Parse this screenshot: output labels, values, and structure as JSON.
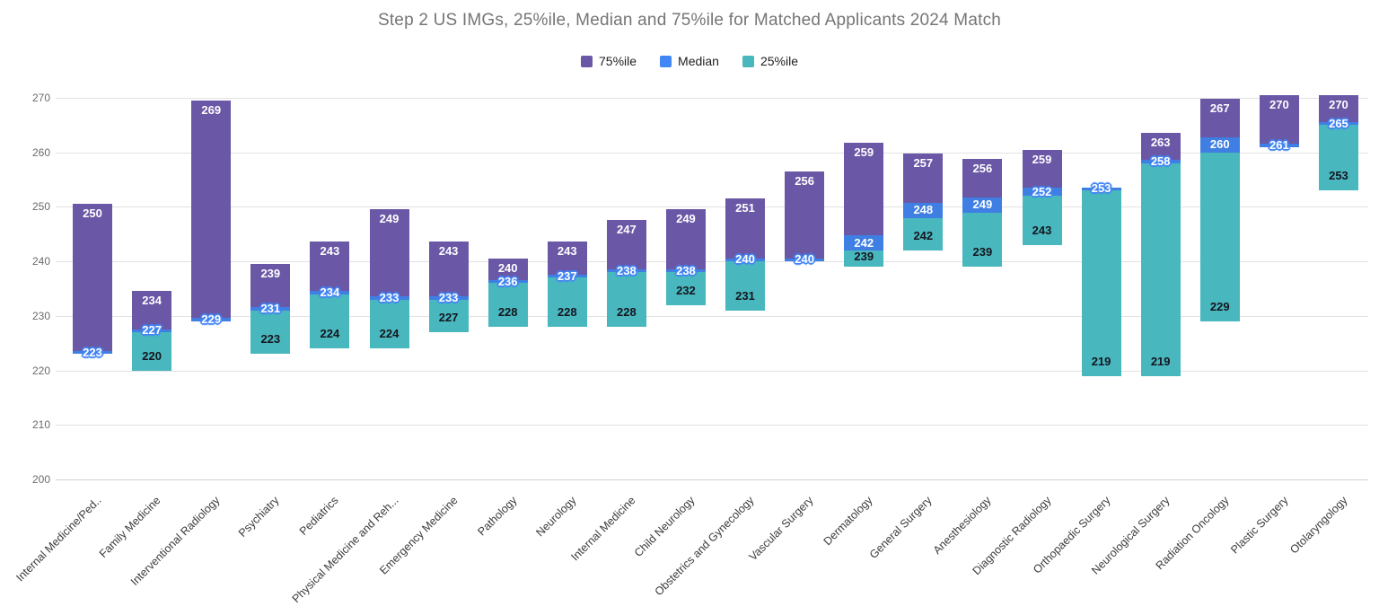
{
  "title": "Step 2 US IMGs, 25%ile, Median and 75%ile for Matched Applicants 2024 Match",
  "legend": [
    {
      "label": "75%ile",
      "color": "#6a57a6"
    },
    {
      "label": "Median",
      "color": "#4285f4"
    },
    {
      "label": "25%ile",
      "color": "#48b7be"
    }
  ],
  "colors": {
    "p75_segment": "#6a57a6",
    "median_segment": "#3f7fe3",
    "p25_segment": "#48b7be",
    "median_label_outline": "#4285f4",
    "gridline": "#e2e2e2",
    "title_text": "#757575"
  },
  "chart_data": {
    "type": "bar",
    "subtype": "floating-stacked-percentile-columns",
    "title": "Step 2 US IMGs, 25%ile, Median and 75%ile for Matched Applicants 2024 Match",
    "legend_position": "top",
    "grid": true,
    "ylim": [
      200,
      270
    ],
    "yticks": [
      200,
      210,
      220,
      230,
      240,
      250,
      260,
      270
    ],
    "xlabel": "",
    "ylabel": "",
    "categories": [
      "Internal Medicine/Ped..",
      "Family Medicine",
      "Interventional Radiology",
      "Psychiatry",
      "Pediatrics",
      "Physical Medicine and Reh...",
      "Emergency Medicine",
      "Pathology",
      "Neurology",
      "Internal Medicine",
      "Child Neurology",
      "Obstetrics and Gynecology",
      "Vascular Surgery",
      "Dermatology",
      "General Surgery",
      "Anesthesiology",
      "Diagnostic Radiology",
      "Orthopaedic Surgery",
      "Neurological Surgery",
      "Radiation Oncology",
      "Plastic Surgery",
      "Otolaryngology"
    ],
    "series": [
      {
        "name": "75%ile",
        "color": "#6a57a6",
        "values": [
          250,
          234,
          269,
          239,
          243,
          249,
          243,
          240,
          243,
          247,
          249,
          251,
          256,
          259,
          257,
          256,
          259,
          null,
          263,
          267,
          270,
          270
        ]
      },
      {
        "name": "Median",
        "color": "#3f7fe3",
        "values": [
          223,
          227,
          229,
          231,
          234,
          233,
          233,
          236,
          237,
          238,
          238,
          240,
          240,
          242,
          248,
          249,
          252,
          253,
          258,
          260,
          261,
          265
        ]
      },
      {
        "name": "25%ile",
        "color": "#48b7be",
        "values": [
          null,
          220,
          null,
          223,
          224,
          224,
          227,
          228,
          228,
          228,
          232,
          231,
          null,
          239,
          242,
          239,
          243,
          219,
          219,
          229,
          null,
          253
        ]
      }
    ],
    "median_band": [
      "thin",
      "thin",
      "thin",
      "thin",
      "thin",
      "thin",
      "thin",
      "thin",
      "thin",
      "thin",
      "thin",
      "thin",
      "thin",
      "thick",
      "thick",
      "thick",
      "medium",
      "thin",
      "thin",
      "thick",
      "thin",
      "thin"
    ]
  }
}
